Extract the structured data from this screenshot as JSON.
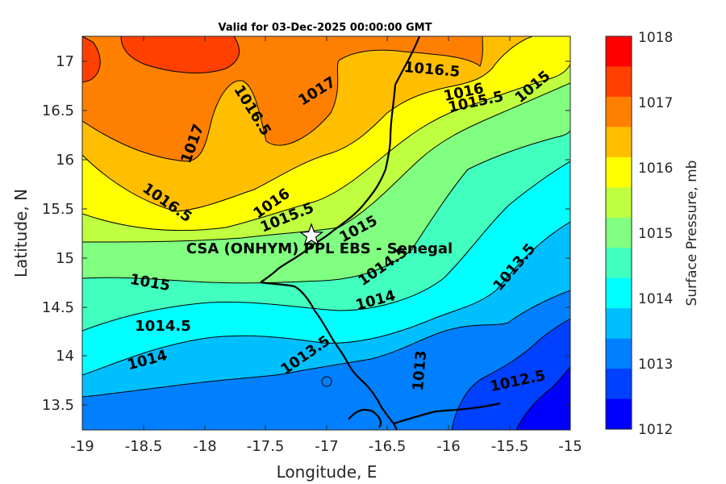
{
  "title": "Valid for 03-Dec-2025 00:00:00 GMT",
  "xlabel": "Longitude, E",
  "ylabel": "Latitude, N",
  "xticks": [
    "-19",
    "-18.5",
    "-18",
    "-17.5",
    "-17",
    "-16.5",
    "-16",
    "-15.5",
    "-15"
  ],
  "yticks": [
    "17",
    "16.5",
    "16",
    "15.5",
    "15",
    "14.5",
    "14",
    "13.5"
  ],
  "site_label": "CSA (ONHYM) PPL EBS  - Senegal",
  "colorbar": {
    "label": "Surface Pressure, mb",
    "ticks": [
      "1018",
      "1017",
      "1016",
      "1015",
      "1014",
      "1013",
      "1012"
    ],
    "colors": [
      "#ff0000",
      "#ff4000",
      "#ff8000",
      "#ffbf00",
      "#ffff00",
      "#bfff40",
      "#80ff80",
      "#40ffbf",
      "#00ffff",
      "#00bfff",
      "#0080ff",
      "#0040ff",
      "#0000ff"
    ]
  },
  "contour_labels": {
    "l1": "1016.5",
    "l2": "1017",
    "l3": "1016.5",
    "l4": "1016",
    "l5": "1015.5",
    "l6": "1015",
    "l7": "1017",
    "l8": "1016.5",
    "l9": "1016",
    "l10": "1015.5",
    "l11": "1015",
    "l12": "1014.5",
    "l13": "1015",
    "l14": "1014.5",
    "l15": "1014",
    "l16": "1014",
    "l17": "1013.5",
    "l18": "1013.5",
    "l19": "1013",
    "l20": "1012.5"
  },
  "chart_data": {
    "type": "heatmap",
    "title": "Valid for 03-Dec-2025 00:00:00 GMT",
    "xlabel": "Longitude, E",
    "ylabel": "Latitude, N",
    "xlim": [
      -19,
      -15
    ],
    "ylim": [
      13.25,
      17.25
    ],
    "clim": [
      1012,
      1018
    ],
    "colorbar_label": "Surface Pressure, mb",
    "levels": [
      1012.5,
      1013,
      1013.5,
      1014,
      1014.5,
      1015,
      1015.5,
      1016,
      1016.5,
      1017
    ],
    "site": {
      "name": "CSA (ONHYM) PPL EBS  - Senegal",
      "lon": -17.13,
      "lat": 15.22
    }
  }
}
